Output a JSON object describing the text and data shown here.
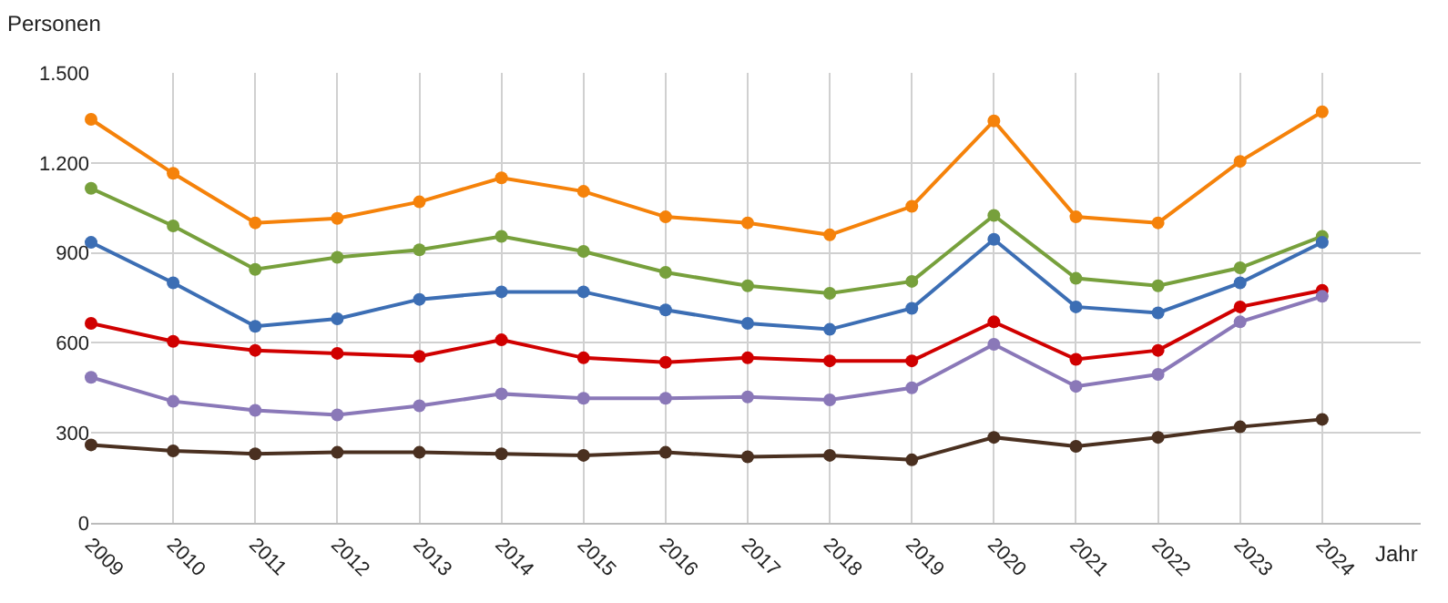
{
  "chart_data": {
    "type": "line",
    "xlabel": "Jahr",
    "ylabel": "Personen",
    "x": [
      2009,
      2010,
      2011,
      2012,
      2013,
      2014,
      2015,
      2016,
      2017,
      2018,
      2019,
      2020,
      2021,
      2022,
      2023,
      2024
    ],
    "xlim": [
      2009,
      2025.2
    ],
    "xticks": [
      2009,
      2010,
      2011,
      2012,
      2013,
      2014,
      2015,
      2016,
      2017,
      2018,
      2019,
      2020,
      2021,
      2022,
      2023,
      2024
    ],
    "ylim": [
      0,
      1500
    ],
    "yticks": [
      0,
      300,
      600,
      900,
      {
        "value": 1200,
        "label": "1.200"
      },
      {
        "value": 1500,
        "label": "1.500"
      }
    ],
    "grid": true,
    "marker": "circle",
    "line_style": "solid",
    "series": [
      {
        "color": "#f5820a",
        "values": [
          1345,
          1165,
          1000,
          1015,
          1070,
          1150,
          1105,
          1020,
          1000,
          960,
          1055,
          1340,
          1020,
          1000,
          1205,
          1370
        ]
      },
      {
        "color": "#77a03c",
        "values": [
          1115,
          990,
          845,
          885,
          910,
          955,
          905,
          835,
          790,
          765,
          805,
          1025,
          815,
          790,
          850,
          955
        ]
      },
      {
        "color": "#3c6eb4",
        "values": [
          935,
          800,
          655,
          680,
          745,
          770,
          770,
          710,
          665,
          645,
          715,
          945,
          720,
          700,
          800,
          935
        ]
      },
      {
        "color": "#d00000",
        "values": [
          665,
          605,
          575,
          565,
          555,
          610,
          550,
          535,
          550,
          540,
          540,
          670,
          545,
          575,
          720,
          775
        ]
      },
      {
        "color": "#8a78b8",
        "values": [
          485,
          405,
          375,
          360,
          390,
          430,
          415,
          415,
          420,
          410,
          450,
          595,
          455,
          495,
          670,
          755
        ]
      },
      {
        "color": "#4a3020",
        "values": [
          260,
          240,
          230,
          235,
          235,
          230,
          225,
          235,
          220,
          225,
          210,
          285,
          255,
          285,
          320,
          345
        ]
      }
    ]
  }
}
